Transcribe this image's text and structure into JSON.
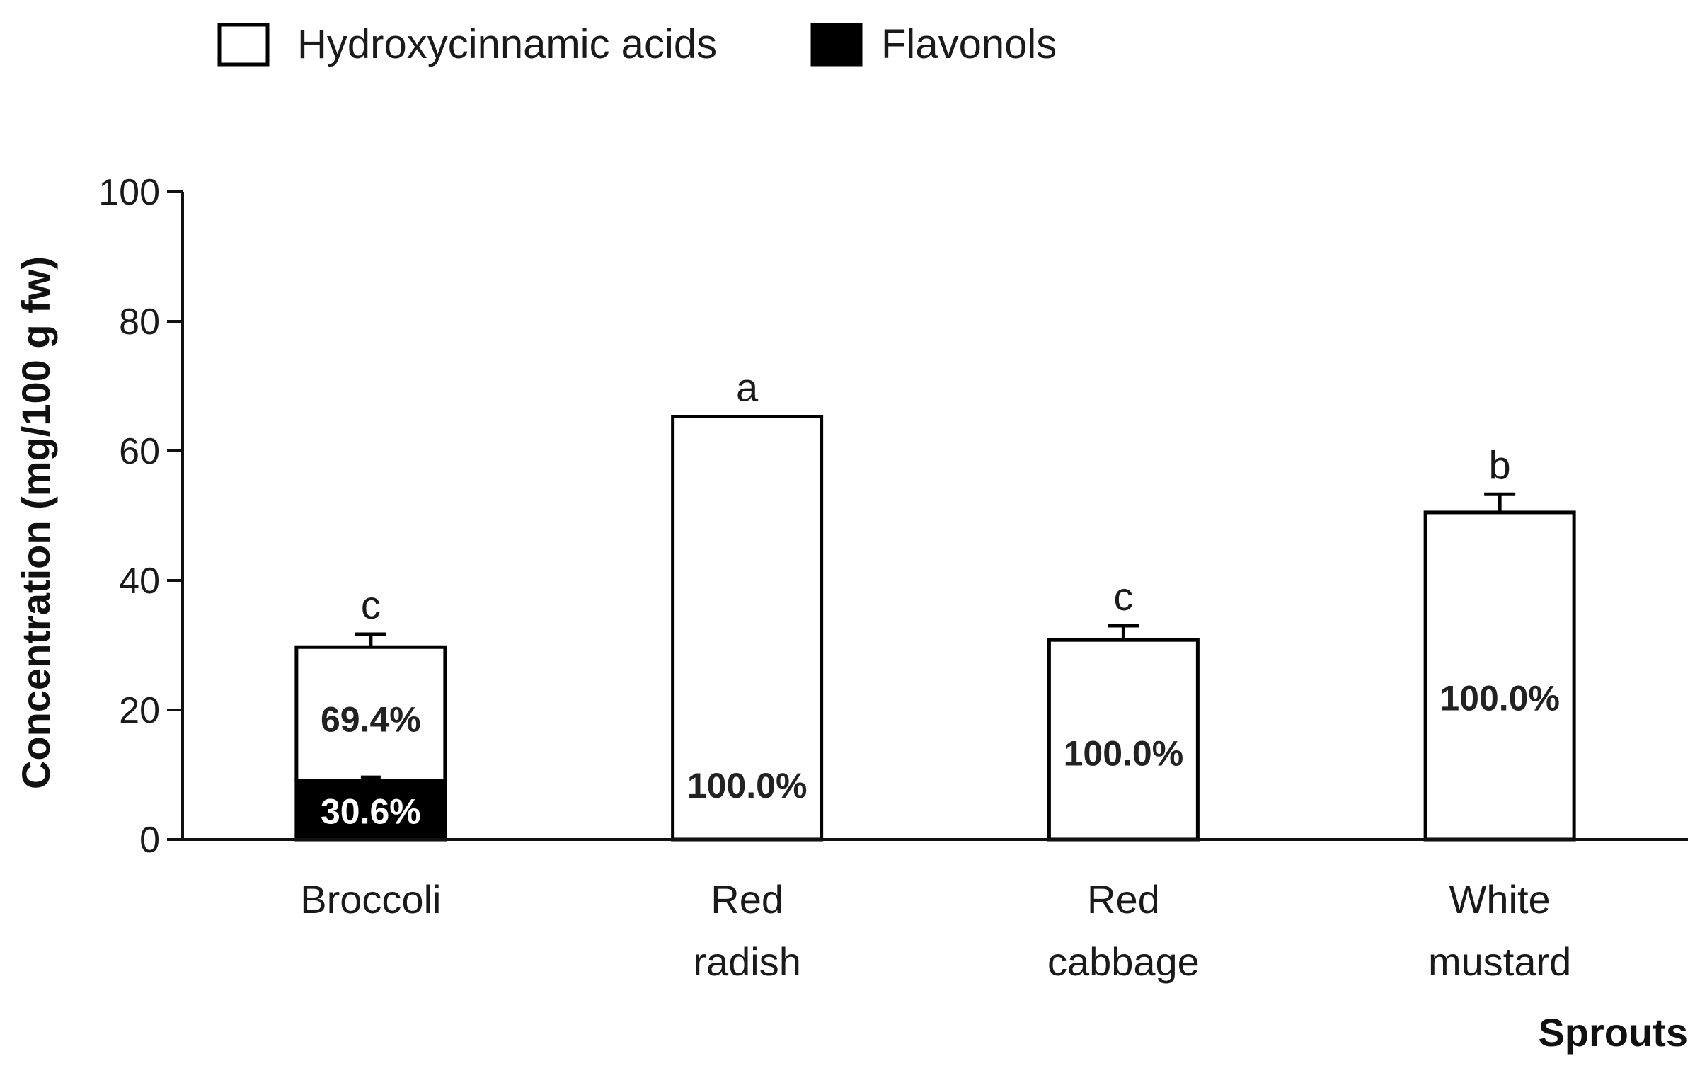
{
  "chart_data": {
    "type": "bar",
    "stacked": true,
    "categories": [
      [
        "Broccoli"
      ],
      [
        "Red",
        "radish"
      ],
      [
        "Red",
        "cabbage"
      ],
      [
        "White",
        "mustard"
      ]
    ],
    "series": [
      {
        "name": "Flavonols",
        "values": [
          9.1,
          0,
          0,
          0
        ],
        "color": "#000000"
      },
      {
        "name": "Hydroxycinnamic acids",
        "values": [
          20.6,
          65.3,
          30.8,
          50.5
        ],
        "color": "#ffffff"
      }
    ],
    "totals": [
      29.7,
      65.3,
      30.8,
      50.5
    ],
    "errors": [
      2.0,
      0,
      2.2,
      2.8
    ],
    "flavonol_error": 0.5,
    "significance_letters": [
      "c",
      "a",
      "c",
      "b"
    ],
    "percent_labels": [
      {
        "category_index": 0,
        "series": "Hydroxycinnamic acids",
        "text": "69.4%",
        "y": 18.5
      },
      {
        "category_index": 0,
        "series": "Flavonols",
        "text": "30.6%",
        "y": 4.3
      },
      {
        "category_index": 1,
        "series": "Hydroxycinnamic acids",
        "text": "100.0%",
        "y": 8.3
      },
      {
        "category_index": 2,
        "series": "Hydroxycinnamic acids",
        "text": "100.0%",
        "y": 13.3
      },
      {
        "category_index": 3,
        "series": "Hydroxycinnamic acids",
        "text": "100.0%",
        "y": 21.8
      }
    ],
    "ylabel": "Concentration (mg/100 g fw)",
    "xlabel": "Sprouts",
    "ylim": [
      0,
      100
    ],
    "yticks": [
      0,
      20,
      40,
      60,
      80,
      100
    ],
    "legend": {
      "placement": "top-left",
      "entries": [
        "Hydroxycinnamic acids",
        "Flavonols"
      ]
    },
    "grid": false
  }
}
